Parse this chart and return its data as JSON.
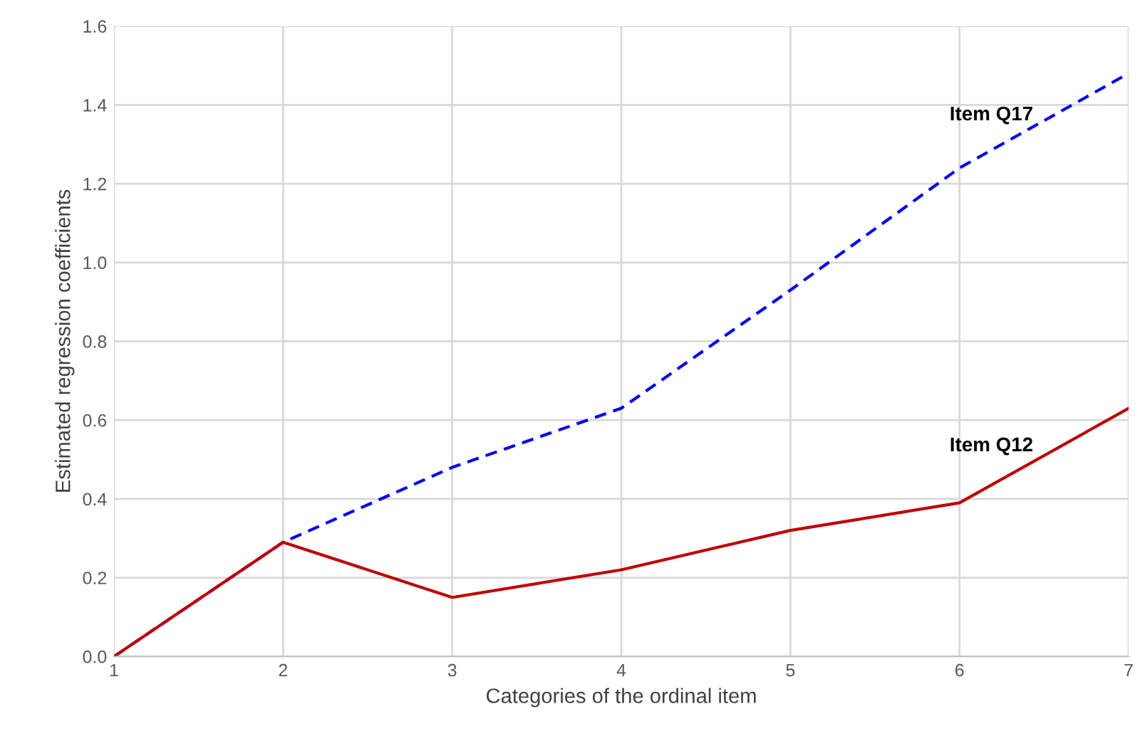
{
  "chart_data": {
    "type": "line",
    "xlabel": "Categories of the ordinal item",
    "ylabel": "Estimated regression coefficients",
    "x": [
      1,
      2,
      3,
      4,
      5,
      6,
      7
    ],
    "series": [
      {
        "name": "Item Q17",
        "color": "#0000ff",
        "line_style": "dashed",
        "values": [
          0,
          0.29,
          0.48,
          0.63,
          0.93,
          1.24,
          1.48
        ]
      },
      {
        "name": "Item Q12",
        "color": "#c00000",
        "line_style": "solid",
        "values": [
          0,
          0.29,
          0.15,
          0.22,
          0.32,
          0.39,
          0.63
        ]
      }
    ],
    "xlim": [
      1,
      7
    ],
    "xticks": [
      1,
      2,
      3,
      4,
      5,
      6,
      7
    ],
    "ylim": [
      0,
      1.6
    ],
    "yticks": [
      {
        "value": 0,
        "label": "0.0"
      },
      0.2,
      0.4,
      0.6,
      0.8,
      {
        "value": 1,
        "label": "1.0"
      },
      1.2,
      1.4,
      1.6
    ],
    "grid": true,
    "legend": false
  }
}
